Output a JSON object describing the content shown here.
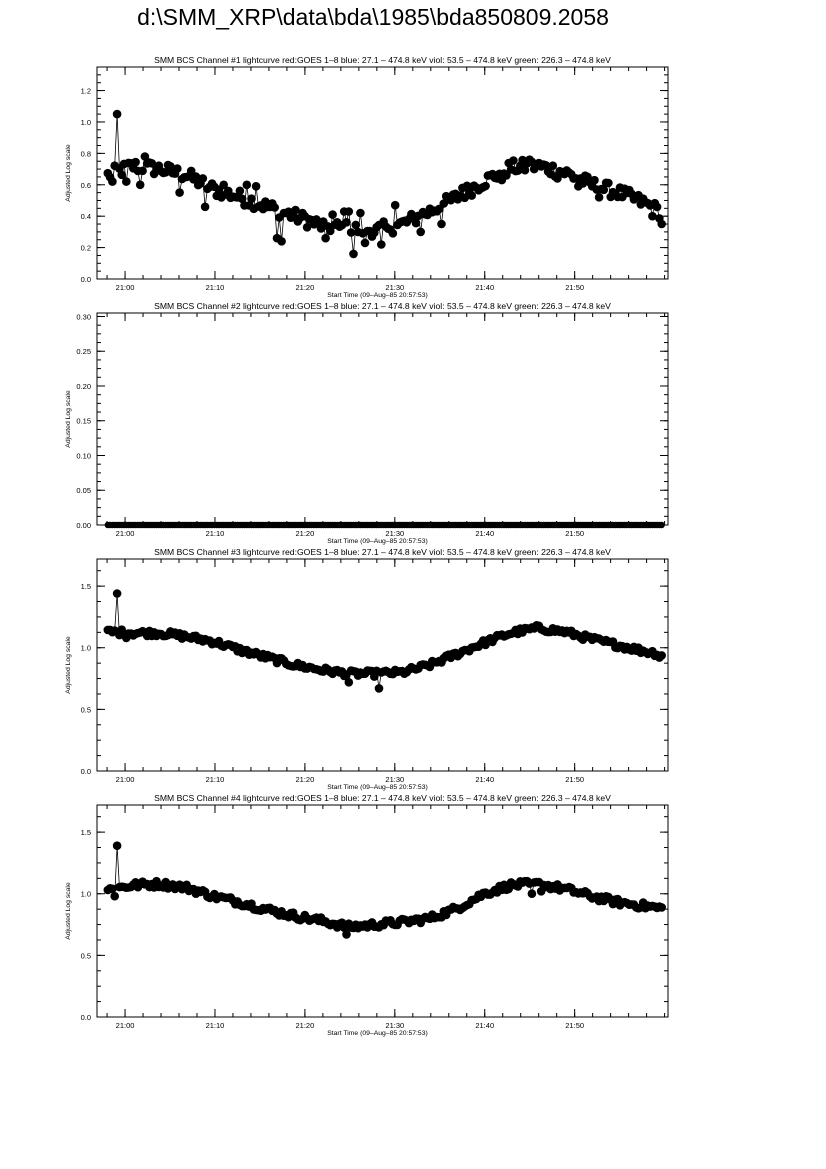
{
  "page": {
    "title": "d:\\SMM_XRP\\data\\bda\\1985\\bda850809.2058"
  },
  "chart_data": [
    {
      "type": "scatter",
      "title": "SMM BCS Channel #1 lightcurve  red:GOES 1–8  blue: 27.1 – 474.8 keV  viol: 53.5 – 474.8 keV  green: 226.3 – 474.8 keV",
      "xlabel": "Start Time (09–Aug–85 20:57:53)",
      "ylabel": "Adjusted Log scale",
      "xlim": [
        -1.0,
        62.5
      ],
      "ylim": [
        0,
        1.35
      ],
      "xticks": [
        2.12,
        12.12,
        22.12,
        32.12,
        42.12,
        52.12
      ],
      "xtick_labels": [
        "21:00",
        "21:10",
        "21:20",
        "21:30",
        "21:40",
        "21:50"
      ],
      "yticks": [
        0.0,
        0.2,
        0.4,
        0.6,
        0.8,
        1.0,
        1.2
      ],
      "ytick_labels": [
        "0.0",
        "0.2",
        "0.4",
        "0.6",
        "0.8",
        "1.0",
        "1.2"
      ],
      "x_range": [
        0.2,
        61.8
      ],
      "n_points": 240,
      "curve": [
        [
          0.2,
          0.66
        ],
        [
          3,
          0.72
        ],
        [
          6,
          0.7
        ],
        [
          9,
          0.66
        ],
        [
          12,
          0.57
        ],
        [
          15,
          0.52
        ],
        [
          18,
          0.46
        ],
        [
          21,
          0.4
        ],
        [
          24,
          0.34
        ],
        [
          27,
          0.32
        ],
        [
          30,
          0.31
        ],
        [
          33,
          0.35
        ],
        [
          36,
          0.43
        ],
        [
          39,
          0.52
        ],
        [
          42,
          0.62
        ],
        [
          45,
          0.71
        ],
        [
          48,
          0.72
        ],
        [
          51,
          0.68
        ],
        [
          54,
          0.6
        ],
        [
          57,
          0.55
        ],
        [
          60,
          0.48
        ],
        [
          61.8,
          0.42
        ]
      ],
      "spikes": [
        [
          1.3,
          1.05
        ],
        [
          0.8,
          0.62
        ],
        [
          2.2,
          0.62
        ],
        [
          3.7,
          0.6
        ],
        [
          4.3,
          0.78
        ],
        [
          8.3,
          0.55
        ],
        [
          11,
          0.46
        ],
        [
          13.1,
          0.6
        ],
        [
          15.7,
          0.6
        ],
        [
          16.6,
          0.59
        ],
        [
          19.1,
          0.26
        ],
        [
          19.6,
          0.24
        ],
        [
          22.1,
          0.4
        ],
        [
          24.5,
          0.26
        ],
        [
          25.2,
          0.41
        ],
        [
          26.4,
          0.43
        ],
        [
          27.1,
          0.43
        ],
        [
          27.6,
          0.16
        ],
        [
          28.2,
          0.42
        ],
        [
          28.9,
          0.23
        ],
        [
          29.6,
          0.27
        ],
        [
          30.5,
          0.22
        ],
        [
          31.3,
          0.32
        ],
        [
          32.1,
          0.47
        ],
        [
          35,
          0.3
        ],
        [
          37.3,
          0.35
        ],
        [
          39.6,
          0.58
        ],
        [
          43.9,
          0.63
        ],
        [
          47,
          0.76
        ],
        [
          50.3,
          0.64
        ],
        [
          52.4,
          0.59
        ],
        [
          54.8,
          0.52
        ],
        [
          60.8,
          0.4
        ],
        [
          61.7,
          0.35
        ]
      ],
      "noise": 0.045,
      "ycolor": "#000000"
    },
    {
      "type": "scatter",
      "title": "SMM BCS Channel #2 lightcurve  red:GOES 1–8  blue: 27.1 – 474.8 keV  viol: 53.5 – 474.8 keV  green: 226.3 – 474.8 keV",
      "xlabel": "Start Time (09–Aug–85 20:57:53)",
      "ylabel": "Adjusted Log scale",
      "xlim": [
        -1.0,
        62.5
      ],
      "ylim": [
        0,
        0.305
      ],
      "xticks": [
        2.12,
        12.12,
        22.12,
        32.12,
        42.12,
        52.12
      ],
      "xtick_labels": [
        "21:00",
        "21:10",
        "21:20",
        "21:30",
        "21:40",
        "21:50"
      ],
      "yticks": [
        0.0,
        0.05,
        0.1,
        0.15,
        0.2,
        0.25,
        0.3
      ],
      "ytick_labels": [
        "0.00",
        "0.05",
        "0.10",
        "0.15",
        "0.20",
        "0.25",
        "0.30"
      ],
      "x_range": [
        0.2,
        61.8
      ],
      "n_points": 240,
      "curve": [
        [
          0.2,
          0.0
        ],
        [
          61.8,
          0.0
        ]
      ],
      "spikes": [],
      "noise": 0,
      "ycolor": "#000000"
    },
    {
      "type": "scatter",
      "title": "SMM BCS Channel #3 lightcurve  red:GOES 1–8  blue: 27.1 – 474.8 keV  viol: 53.5 – 474.8 keV  green: 226.3 – 474.8 keV",
      "xlabel": "Start Time (09–Aug–85 20:57:53)",
      "ylabel": "Adjusted Log scale",
      "xlim": [
        -1.0,
        62.5
      ],
      "ylim": [
        0,
        1.72
      ],
      "xticks": [
        2.12,
        12.12,
        22.12,
        32.12,
        42.12,
        52.12
      ],
      "xtick_labels": [
        "21:00",
        "21:10",
        "21:20",
        "21:30",
        "21:40",
        "21:50"
      ],
      "yticks": [
        0.0,
        0.5,
        1.0,
        1.5
      ],
      "ytick_labels": [
        "0.0",
        "0.5",
        "1.0",
        "1.5"
      ],
      "x_range": [
        0.2,
        61.8
      ],
      "n_points": 240,
      "curve": [
        [
          0.2,
          1.13
        ],
        [
          3,
          1.12
        ],
        [
          6,
          1.12
        ],
        [
          9,
          1.09
        ],
        [
          12,
          1.05
        ],
        [
          15,
          0.98
        ],
        [
          18,
          0.92
        ],
        [
          21,
          0.86
        ],
        [
          24,
          0.82
        ],
        [
          27,
          0.79
        ],
        [
          30,
          0.79
        ],
        [
          33,
          0.8
        ],
        [
          36,
          0.86
        ],
        [
          39,
          0.95
        ],
        [
          42,
          1.04
        ],
        [
          45,
          1.12
        ],
        [
          48,
          1.16
        ],
        [
          51,
          1.13
        ],
        [
          54,
          1.07
        ],
        [
          57,
          1.02
        ],
        [
          60,
          0.97
        ],
        [
          61.8,
          0.95
        ]
      ],
      "spikes": [
        [
          1.3,
          1.44
        ],
        [
          2.3,
          1.08
        ],
        [
          26.9,
          0.72
        ],
        [
          30.4,
          0.67
        ],
        [
          61.5,
          0.92
        ]
      ],
      "noise": 0.025,
      "ycolor": "#000000"
    },
    {
      "type": "scatter",
      "title": "SMM BCS Channel #4 lightcurve  red:GOES 1–8  blue: 27.1 – 474.8 keV  viol: 53.5 – 474.8 keV  green: 226.3 – 474.8 keV",
      "xlabel": "Start Time (09–Aug–85 20:57:53)",
      "ylabel": "Adjusted Log scale",
      "xlim": [
        -1.0,
        62.5
      ],
      "ylim": [
        0,
        1.72
      ],
      "xticks": [
        2.12,
        12.12,
        22.12,
        32.12,
        42.12,
        52.12
      ],
      "xtick_labels": [
        "21:00",
        "21:10",
        "21:20",
        "21:30",
        "21:40",
        "21:50"
      ],
      "yticks": [
        0.0,
        0.5,
        1.0,
        1.5
      ],
      "ytick_labels": [
        "0.0",
        "0.5",
        "1.0",
        "1.5"
      ],
      "x_range": [
        0.2,
        61.8
      ],
      "n_points": 240,
      "curve": [
        [
          0.2,
          1.03
        ],
        [
          3,
          1.07
        ],
        [
          6,
          1.08
        ],
        [
          9,
          1.05
        ],
        [
          12,
          0.98
        ],
        [
          15,
          0.93
        ],
        [
          18,
          0.87
        ],
        [
          21,
          0.82
        ],
        [
          24,
          0.78
        ],
        [
          27,
          0.73
        ],
        [
          30,
          0.75
        ],
        [
          33,
          0.77
        ],
        [
          36,
          0.8
        ],
        [
          39,
          0.88
        ],
        [
          42,
          1.0
        ],
        [
          45,
          1.07
        ],
        [
          48,
          1.08
        ],
        [
          51,
          1.04
        ],
        [
          54,
          0.98
        ],
        [
          57,
          0.93
        ],
        [
          60,
          0.9
        ],
        [
          61.8,
          0.88
        ]
      ],
      "spikes": [
        [
          1.3,
          1.39
        ],
        [
          0.9,
          0.98
        ],
        [
          26.7,
          0.67
        ],
        [
          48.4,
          1.02
        ],
        [
          47.3,
          1.0
        ]
      ],
      "noise": 0.028,
      "ycolor": "#000000"
    }
  ]
}
